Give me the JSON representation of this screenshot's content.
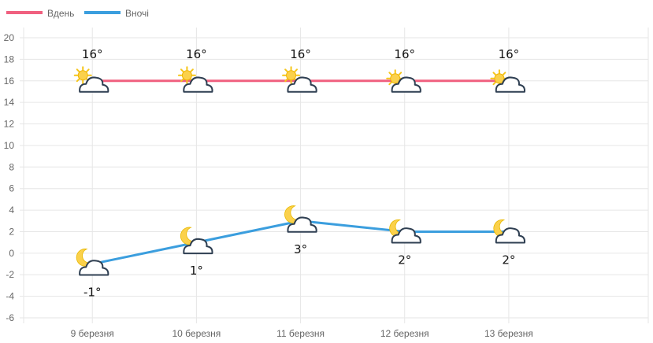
{
  "chart_data": {
    "type": "line",
    "categories": [
      "9 березня",
      "10 березня",
      "11 березня",
      "12 березня",
      "13 березня"
    ],
    "series": [
      {
        "name": "Вдень",
        "values": [
          16,
          16,
          16,
          16,
          16
        ],
        "labels": [
          "16°",
          "16°",
          "16°",
          "16°",
          "16°"
        ],
        "color": "#f0607f",
        "icons": [
          "sun-cloud-icon",
          "sun-cloud-icon",
          "sun-cloud-icon",
          "sun-cloud-icon",
          "sun-cloud-icon"
        ]
      },
      {
        "name": "Вночі",
        "values": [
          -1,
          1,
          3,
          2,
          2
        ],
        "labels": [
          "-1°",
          "1°",
          "3°",
          "2°",
          "2°"
        ],
        "color": "#3b9ede",
        "icons": [
          "moon-cloud-icon",
          "moon-cloud-icon",
          "moon-cloud-icon",
          "moon-cloud-icon",
          "moon-cloud-icon"
        ]
      }
    ],
    "yticks": [
      -6,
      -4,
      -2,
      0,
      2,
      4,
      6,
      8,
      10,
      12,
      14,
      16,
      18,
      20
    ],
    "ylim": [
      -6,
      21
    ],
    "grid": true,
    "legend_position": "top-left"
  }
}
